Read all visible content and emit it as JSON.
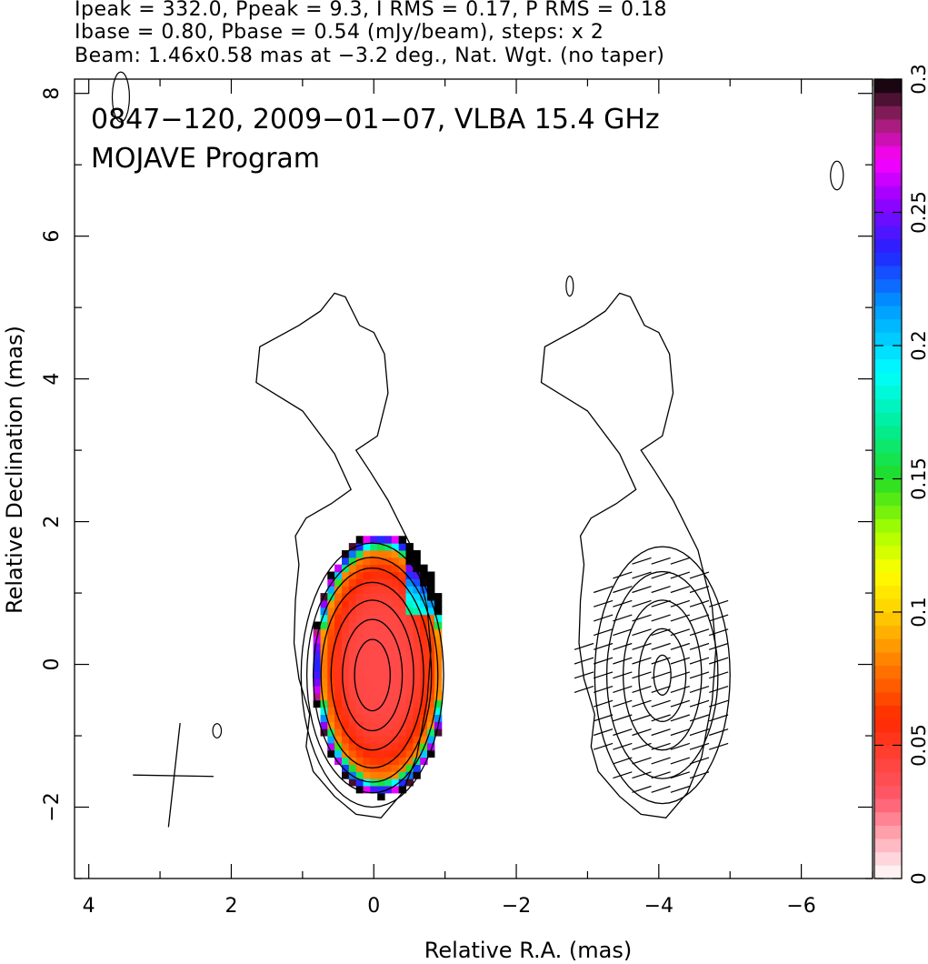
{
  "header": {
    "line1": "Ipeak = 332.0, Ppeak = 9.3, I RMS = 0.17, P RMS = 0.18",
    "line2": "Ibase = 0.80, Pbase = 0.54 (mJy/beam), steps: x 2",
    "line3": "Beam: 1.46x0.58 mas at −3.2 deg., Nat. Wgt. (no taper)"
  },
  "chart_data": {
    "type": "heatmap",
    "title": "0847−120, 2009−01−07, VLBA 15.4 GHz",
    "subtitle": "MOJAVE Program",
    "xlabel": "Relative R.A. (mas)",
    "ylabel": "Relative Declination (mas)",
    "xlim": [
      4.2,
      -7.0
    ],
    "ylim": [
      -3.0,
      8.2
    ],
    "x_ticks": [
      4,
      2,
      0,
      -2,
      -4,
      -6
    ],
    "x_tick_labels": [
      "4",
      "2",
      "0",
      "−2",
      "−4",
      "−6"
    ],
    "y_ticks": [
      -2,
      0,
      2,
      4,
      6,
      8
    ],
    "y_tick_labels": [
      "−2",
      "0",
      "2",
      "4",
      "6",
      "8"
    ],
    "colorbar": {
      "min": 0,
      "max": 0.3,
      "ticks": [
        0,
        0.05,
        0.1,
        0.15,
        0.2,
        0.25,
        0.3
      ],
      "tick_labels": [
        "0",
        "0.05",
        "0.1",
        "0.15",
        "0.2",
        "0.25",
        "0.3"
      ],
      "stops": [
        {
          "v": 0.0,
          "color": "#ffffff"
        },
        {
          "v": 0.03,
          "color": "#ff5a6e"
        },
        {
          "v": 0.06,
          "color": "#ff2a00"
        },
        {
          "v": 0.08,
          "color": "#ff7a00"
        },
        {
          "v": 0.1,
          "color": "#ffd000"
        },
        {
          "v": 0.115,
          "color": "#ffff00"
        },
        {
          "v": 0.13,
          "color": "#aaff00"
        },
        {
          "v": 0.15,
          "color": "#22dd22"
        },
        {
          "v": 0.17,
          "color": "#00ee99"
        },
        {
          "v": 0.19,
          "color": "#00ffff"
        },
        {
          "v": 0.215,
          "color": "#0099ff"
        },
        {
          "v": 0.235,
          "color": "#2222ff"
        },
        {
          "v": 0.255,
          "color": "#9900ff"
        },
        {
          "v": 0.27,
          "color": "#ff00ff"
        },
        {
          "v": 0.285,
          "color": "#992266"
        },
        {
          "v": 0.3,
          "color": "#000000"
        }
      ]
    },
    "peak_I_mJy_per_beam": 332.0,
    "peak_P_mJy_per_beam": 9.3,
    "I_rms": 0.17,
    "P_rms": 0.18,
    "I_base_mJy_per_beam": 0.8,
    "P_base_mJy_per_beam": 0.54,
    "contour_step_factor": 2,
    "beam": {
      "major_mas": 1.46,
      "minor_mas": 0.58,
      "pa_deg": -3.2
    },
    "panels": [
      {
        "name": "total intensity with fractional polarization",
        "center_ra": 0.0,
        "center_dec": 0.0
      },
      {
        "name": "polarized intensity with EVPA ticks",
        "center_ra": -4.0,
        "center_dec": 0.0
      }
    ]
  }
}
